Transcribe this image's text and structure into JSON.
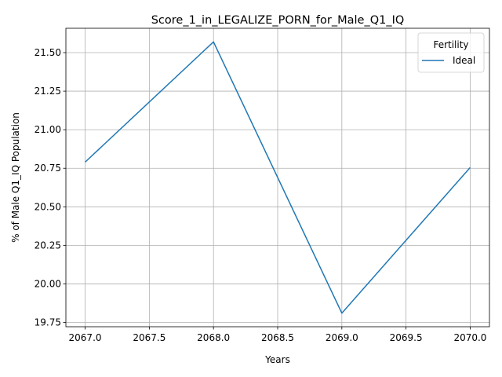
{
  "chart_data": {
    "type": "line",
    "title": "Score_1_in_LEGALIZE_PORN_for_Male_Q1_IQ",
    "xlabel": "Years",
    "ylabel": "% of Male Q1_IQ Population",
    "x": [
      2067,
      2068,
      2069,
      2070
    ],
    "series": [
      {
        "name": "Ideal",
        "values": [
          20.79,
          21.57,
          19.81,
          20.755
        ],
        "color": "#1f77b4"
      }
    ],
    "xlim": [
      2066.85,
      2070.15
    ],
    "ylim": [
      19.722,
      21.658
    ],
    "xticks": [
      2067.0,
      2067.5,
      2068.0,
      2068.5,
      2069.0,
      2069.5,
      2070.0
    ],
    "xtick_labels": [
      "2067.0",
      "2067.5",
      "2068.0",
      "2068.5",
      "2069.0",
      "2069.5",
      "2070.0"
    ],
    "yticks": [
      19.75,
      20.0,
      20.25,
      20.5,
      20.75,
      21.0,
      21.25,
      21.5
    ],
    "ytick_labels": [
      "19.75",
      "20.00",
      "20.25",
      "20.50",
      "20.75",
      "21.00",
      "21.25",
      "21.50"
    ],
    "grid": true,
    "legend": {
      "title": "Fertility",
      "placement": "top-right"
    }
  }
}
